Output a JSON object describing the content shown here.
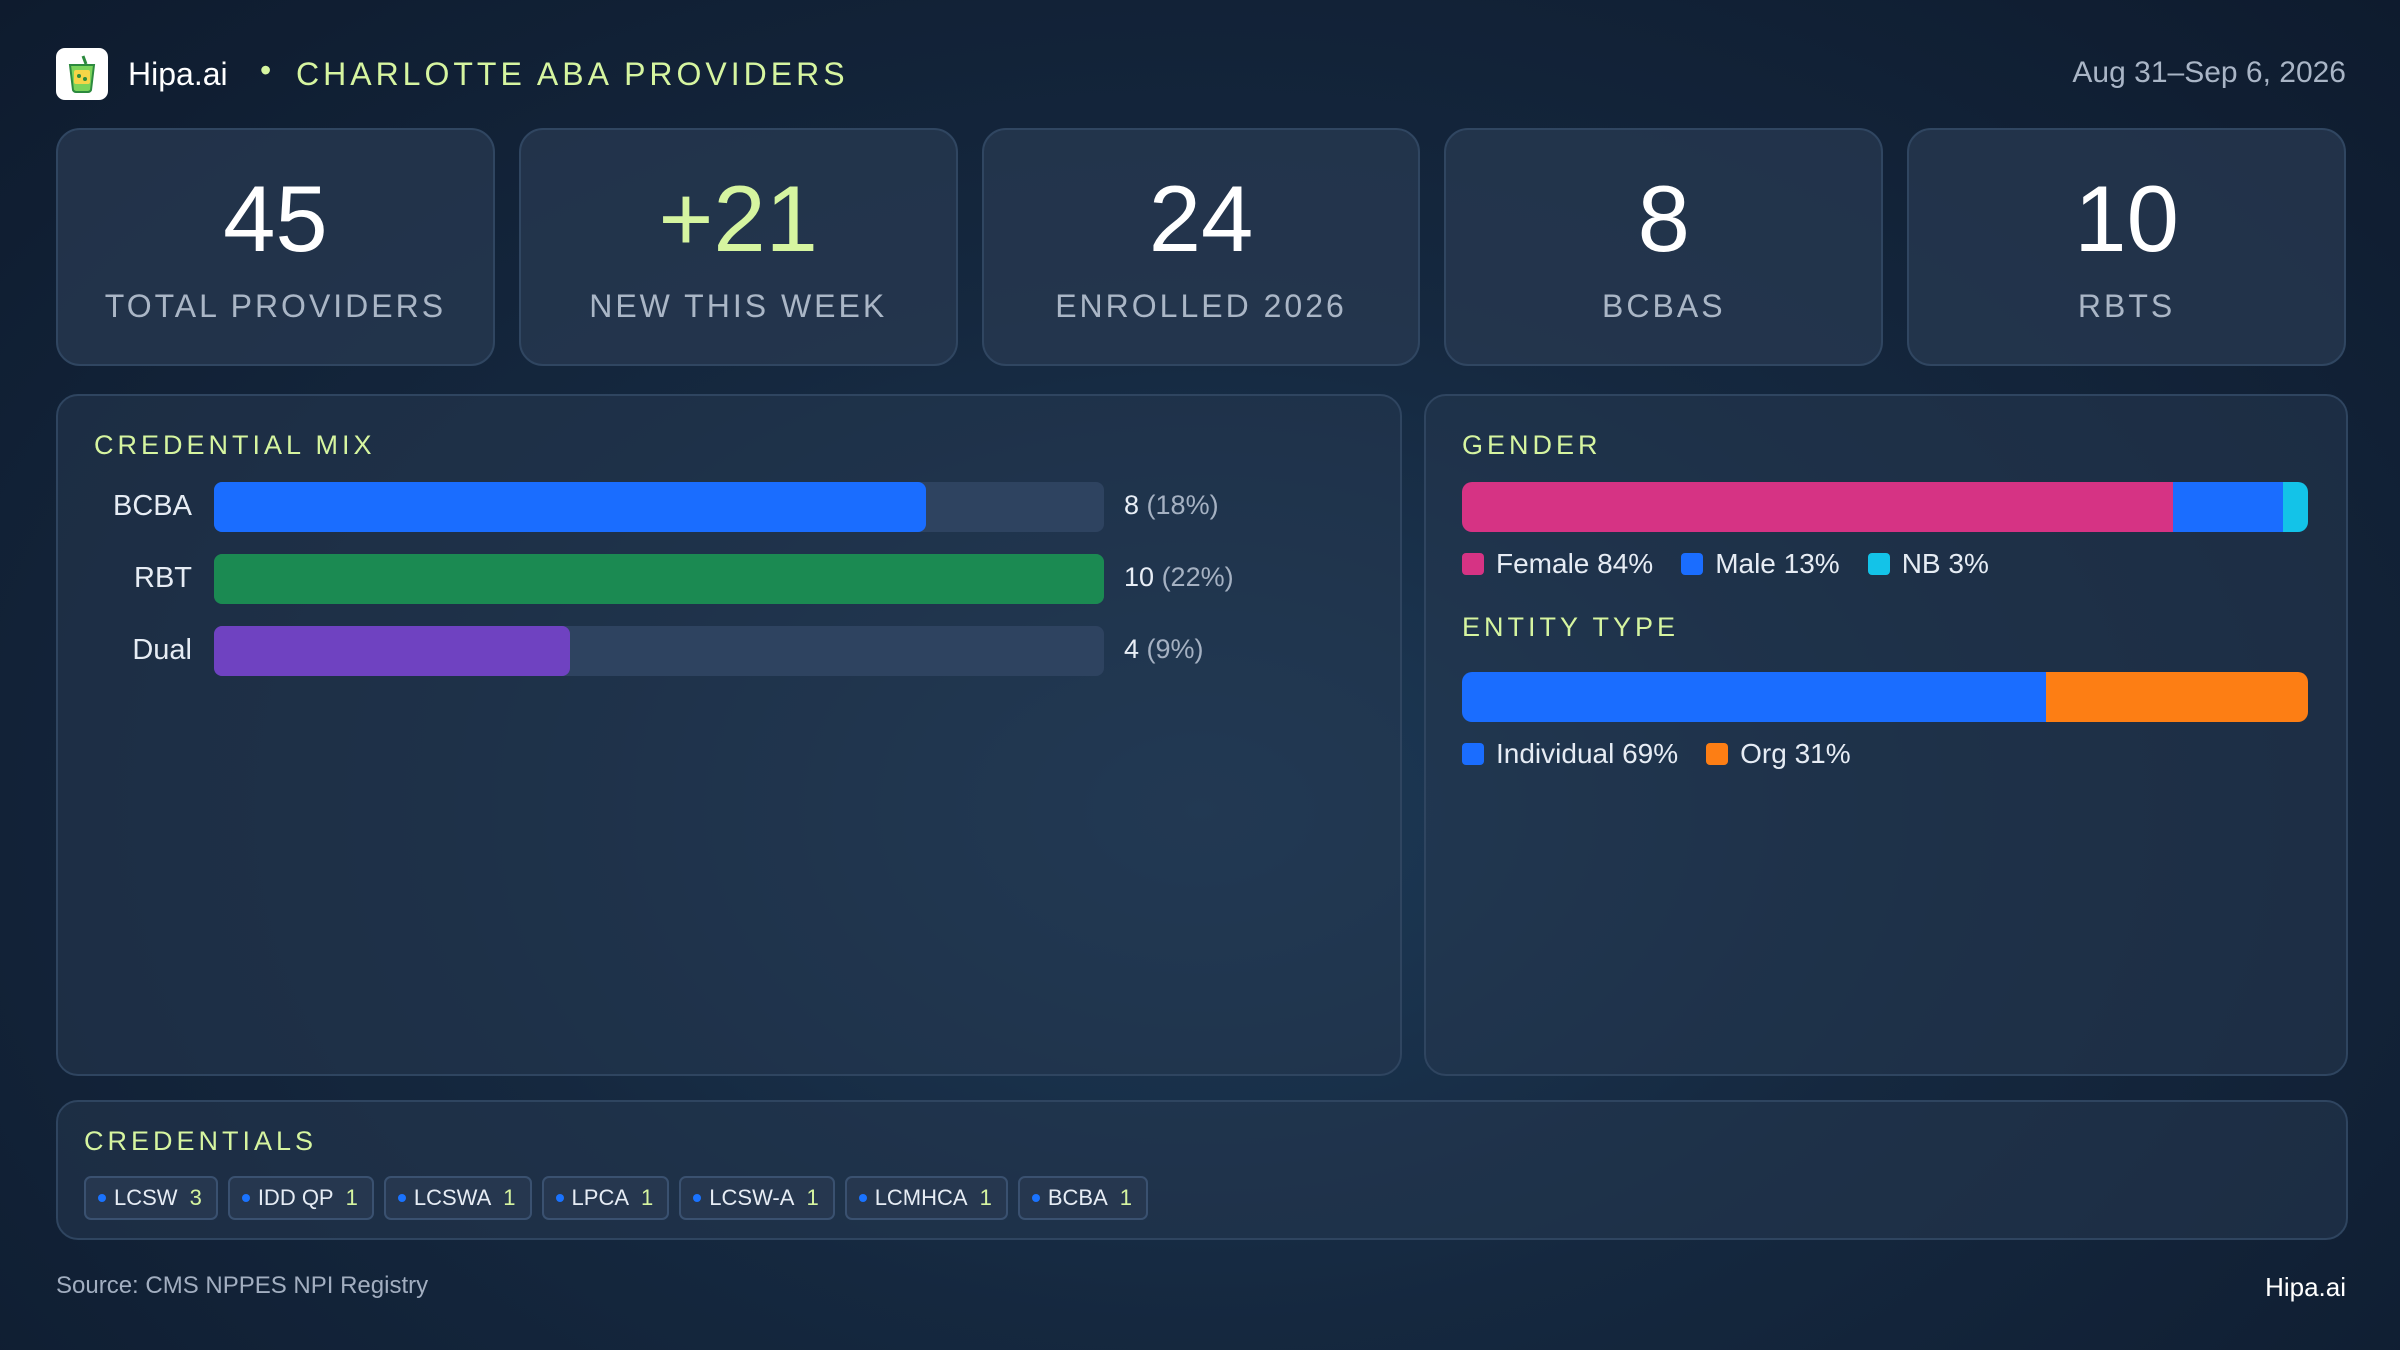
{
  "header": {
    "brand": "Hipa.ai",
    "separator": "•",
    "title": "CHARLOTTE ABA PROVIDERS",
    "date_range": "Aug 31–Sep 6, 2026"
  },
  "kpis": [
    {
      "value": "45",
      "label": "TOTAL PROVIDERS"
    },
    {
      "value": "+21",
      "label": "NEW THIS WEEK"
    },
    {
      "value": "24",
      "label": "ENROLLED 2026"
    },
    {
      "value": "8",
      "label": "BCBAS"
    },
    {
      "value": "10",
      "label": "RBTS"
    }
  ],
  "credential_mix": {
    "title": "CREDENTIAL MIX",
    "max": 10,
    "rows": [
      {
        "label": "BCBA",
        "count": "8",
        "pct": "(18%)",
        "value": 8,
        "color": "#1a6dff"
      },
      {
        "label": "RBT",
        "count": "10",
        "pct": "(22%)",
        "value": 10,
        "color": "#1b8a52"
      },
      {
        "label": "Dual",
        "count": "4",
        "pct": "(9%)",
        "value": 4,
        "color": "#6f42c1"
      }
    ]
  },
  "gender": {
    "title": "GENDER",
    "segments": [
      {
        "label": "Female 84%",
        "value": 84,
        "color": "#d63384"
      },
      {
        "label": "Male 13%",
        "value": 13,
        "color": "#1a6dff"
      },
      {
        "label": "NB 3%",
        "value": 3,
        "color": "#13c3e8"
      }
    ]
  },
  "entity_type": {
    "title": "ENTITY TYPE",
    "segments": [
      {
        "label": "Individual 69%",
        "value": 69,
        "color": "#1a6dff"
      },
      {
        "label": "Org 31%",
        "value": 31,
        "color": "#fd7e14"
      }
    ]
  },
  "credentials": {
    "title": "CREDENTIALS",
    "chips": [
      {
        "name": "LCSW",
        "count": "3"
      },
      {
        "name": "IDD QP",
        "count": "1"
      },
      {
        "name": "LCSWA",
        "count": "1"
      },
      {
        "name": "LPCA",
        "count": "1"
      },
      {
        "name": "LCSW-A",
        "count": "1"
      },
      {
        "name": "LCMHCA",
        "count": "1"
      },
      {
        "name": "BCBA",
        "count": "1"
      }
    ]
  },
  "footer": {
    "source": "Source: CMS NPPES NPI Registry",
    "brand": "Hipa.ai"
  }
}
